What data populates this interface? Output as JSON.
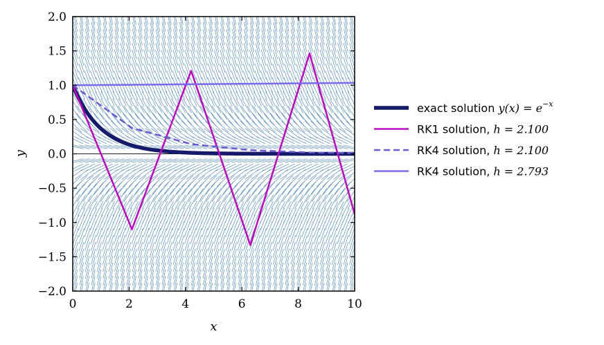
{
  "chart_data": {
    "type": "line",
    "title": "",
    "xlabel": "x",
    "ylabel": "y",
    "xlim": [
      0,
      10
    ],
    "ylim": [
      -2,
      2
    ],
    "xticks": [
      0,
      2,
      4,
      6,
      8,
      10
    ],
    "xtick_labels": [
      "0",
      "2",
      "4",
      "6",
      "8",
      "10"
    ],
    "yticks": [
      -2.0,
      -1.5,
      -1.0,
      -0.5,
      0.0,
      0.5,
      1.0,
      1.5,
      2.0
    ],
    "ytick_labels": [
      "−2.0",
      "−1.5",
      "−1.0",
      "−0.5",
      "0.0",
      "0.5",
      "1.0",
      "1.5",
      "2.0"
    ],
    "grid": false,
    "legend_position": "outside-right",
    "direction_field": {
      "equation": "dy/dx = -y",
      "color": "#2f6fa8"
    },
    "series": [
      {
        "name": "exact solution y(x) = e^{-x}",
        "style": "solid-thick",
        "color": "#161a6b",
        "function": "exp(-x)"
      },
      {
        "name": "RK1 solution, h = 2.100",
        "style": "solid",
        "color": "#bb0bbb",
        "x": [
          0,
          2.1,
          4.2,
          6.3,
          8.4,
          10.5
        ],
        "y": [
          1.0,
          -1.1,
          1.21,
          -1.331,
          1.4641,
          -1.61051
        ]
      },
      {
        "name": "RK4 solution, h = 2.100",
        "style": "dashed",
        "color": "#6a5acd",
        "x": [
          0,
          2.1,
          4.2,
          6.3,
          8.4,
          10.5
        ],
        "y": [
          1.0,
          0.3767,
          0.1419,
          0.0535,
          0.0201,
          0.0076
        ]
      },
      {
        "name": "RK4 solution, h = 2.793",
        "style": "solid",
        "color": "#7b68ee",
        "x": [
          0,
          2.793,
          5.586,
          8.379,
          11.172
        ],
        "y": [
          1.0,
          1.0094,
          1.0189,
          1.0285,
          1.0382
        ]
      }
    ],
    "legend": {
      "entries": [
        {
          "text": "exact solution ",
          "math": "y(x) = e",
          "sup": "−x"
        },
        {
          "text": "RK1 solution, ",
          "math": "h = 2.100",
          "sup": ""
        },
        {
          "text": "RK4 solution, ",
          "math": "h = 2.100",
          "sup": ""
        },
        {
          "text": "RK4 solution, ",
          "math": "h = 2.793",
          "sup": ""
        }
      ]
    }
  }
}
